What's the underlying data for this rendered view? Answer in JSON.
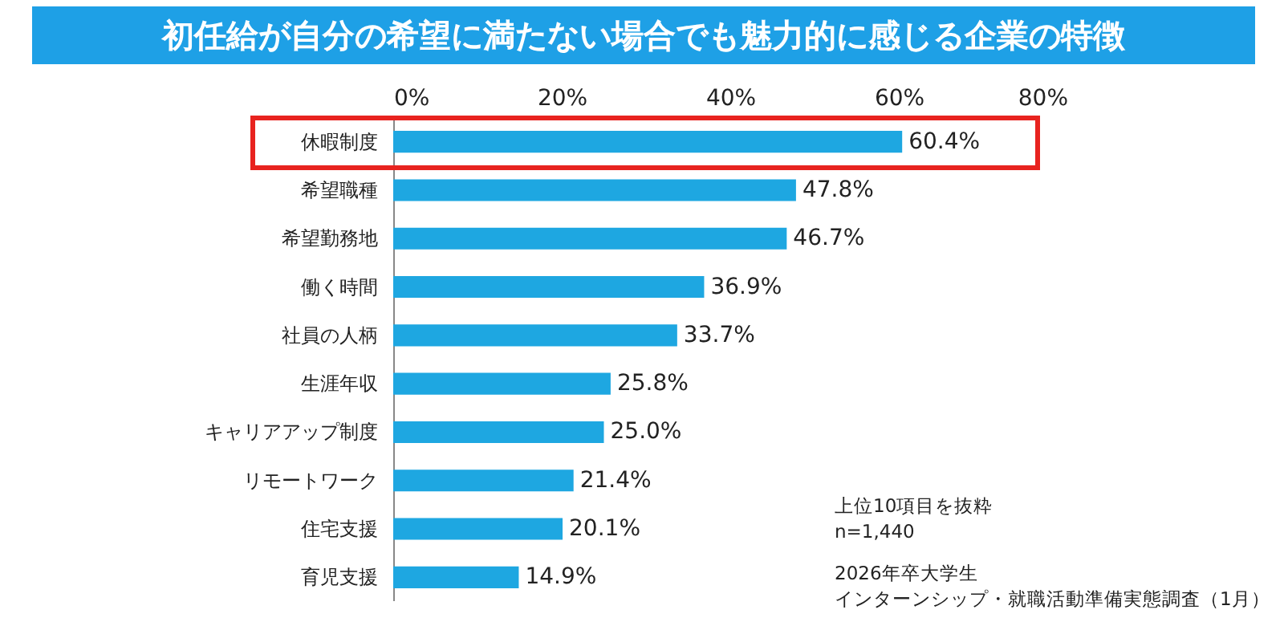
{
  "chart_data": {
    "type": "bar",
    "orientation": "horizontal",
    "title": "初任給が自分の希望に満たない場合でも魅力的に感じる企業の特徴",
    "categories": [
      "休暇制度",
      "希望職種",
      "希望勤務地",
      "働く時間",
      "社員の人柄",
      "生涯年収",
      "キャリアアップ制度",
      "リモートワーク",
      "住宅支援",
      "育児支援"
    ],
    "values": [
      60.4,
      47.8,
      46.7,
      36.9,
      33.7,
      25.8,
      25.0,
      21.4,
      20.1,
      14.9
    ],
    "value_labels": [
      "60.4%",
      "47.8%",
      "46.7%",
      "36.9%",
      "33.7%",
      "25.8%",
      "25.0%",
      "21.4%",
      "20.1%",
      "14.9%"
    ],
    "color": "#1ea7e1",
    "xlim": [
      0,
      80
    ],
    "xticks": [
      {
        "value": 0,
        "label": "0%"
      },
      {
        "value": 20,
        "label": "20%"
      },
      {
        "value": 40,
        "label": "40%"
      },
      {
        "value": 60,
        "label": "60%"
      },
      {
        "value": 80,
        "label": "80%"
      }
    ],
    "grid": false,
    "annotations": [
      "上位10項目を抜粋",
      "n=1,440",
      "2026年卒大学生",
      "インターンシップ・就職活動準備実態調査（1月）"
    ]
  }
}
